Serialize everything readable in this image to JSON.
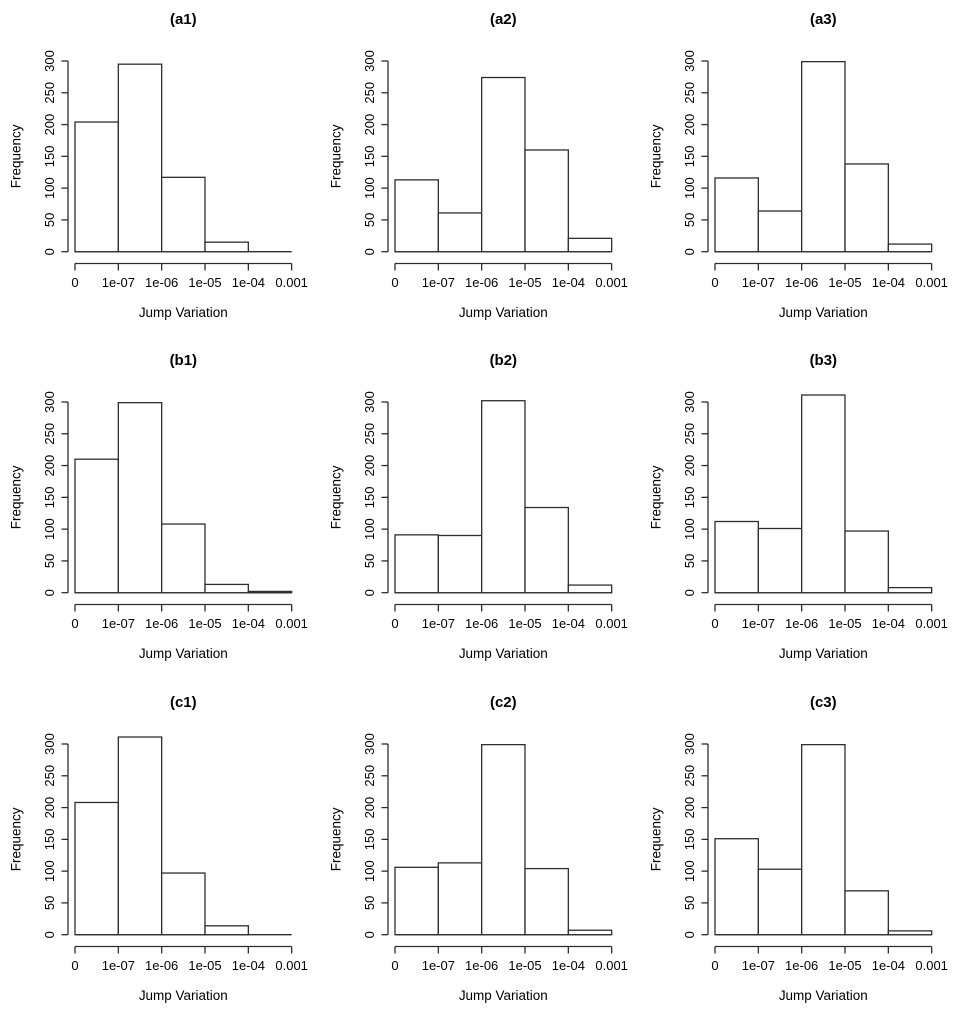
{
  "figure": {
    "grid": "3x3",
    "background": "#ffffff",
    "line_color": "#2e2e2e",
    "bar_fill": "#ffffff",
    "text_color": "#000000"
  },
  "chart_data": [
    {
      "type": "bar",
      "title": "(a1)",
      "xlabel": "Jump Variation",
      "ylabel": "Frequency",
      "x_tick_labels": [
        "0",
        "1e-07",
        "1e-06",
        "1e-05",
        "1e-04",
        "0.001"
      ],
      "y_ticks": [
        0,
        50,
        100,
        150,
        200,
        250,
        300
      ],
      "ylim": [
        0,
        300
      ],
      "grid_lines": false,
      "values": [
        204,
        295,
        117,
        15,
        0
      ]
    },
    {
      "type": "bar",
      "title": "(a2)",
      "xlabel": "Jump Variation",
      "ylabel": "Frequency",
      "x_tick_labels": [
        "0",
        "1e-07",
        "1e-06",
        "1e-05",
        "1e-04",
        "0.001"
      ],
      "y_ticks": [
        0,
        50,
        100,
        150,
        200,
        250,
        300
      ],
      "ylim": [
        0,
        300
      ],
      "grid_lines": false,
      "values": [
        113,
        61,
        274,
        160,
        21
      ]
    },
    {
      "type": "bar",
      "title": "(a3)",
      "xlabel": "Jump Variation",
      "ylabel": "Frequency",
      "x_tick_labels": [
        "0",
        "1e-07",
        "1e-06",
        "1e-05",
        "1e-04",
        "0.001"
      ],
      "y_ticks": [
        0,
        50,
        100,
        150,
        200,
        250,
        300
      ],
      "ylim": [
        0,
        300
      ],
      "grid_lines": false,
      "values": [
        116,
        64,
        299,
        138,
        12
      ]
    },
    {
      "type": "bar",
      "title": "(b1)",
      "xlabel": "Jump Variation",
      "ylabel": "Frequency",
      "x_tick_labels": [
        "0",
        "1e-07",
        "1e-06",
        "1e-05",
        "1e-04",
        "0.001"
      ],
      "y_ticks": [
        0,
        50,
        100,
        150,
        200,
        250,
        300
      ],
      "ylim": [
        0,
        300
      ],
      "grid_lines": false,
      "values": [
        210,
        299,
        108,
        13,
        2
      ]
    },
    {
      "type": "bar",
      "title": "(b2)",
      "xlabel": "Jump Variation",
      "ylabel": "Frequency",
      "x_tick_labels": [
        "0",
        "1e-07",
        "1e-06",
        "1e-05",
        "1e-04",
        "0.001"
      ],
      "y_ticks": [
        0,
        50,
        100,
        150,
        200,
        250,
        300
      ],
      "ylim": [
        0,
        300
      ],
      "grid_lines": false,
      "values": [
        91,
        90,
        302,
        134,
        12
      ]
    },
    {
      "type": "bar",
      "title": "(b3)",
      "xlabel": "Jump Variation",
      "ylabel": "Frequency",
      "x_tick_labels": [
        "0",
        "1e-07",
        "1e-06",
        "1e-05",
        "1e-04",
        "0.001"
      ],
      "y_ticks": [
        0,
        50,
        100,
        150,
        200,
        250,
        300
      ],
      "ylim": [
        0,
        300
      ],
      "grid_lines": false,
      "values": [
        112,
        101,
        311,
        97,
        8
      ]
    },
    {
      "type": "bar",
      "title": "(c1)",
      "xlabel": "Jump Variation",
      "ylabel": "Frequency",
      "x_tick_labels": [
        "0",
        "1e-07",
        "1e-06",
        "1e-05",
        "1e-04",
        "0.001"
      ],
      "y_ticks": [
        0,
        50,
        100,
        150,
        200,
        250,
        300
      ],
      "ylim": [
        0,
        300
      ],
      "grid_lines": false,
      "values": [
        208,
        311,
        97,
        14,
        0
      ]
    },
    {
      "type": "bar",
      "title": "(c2)",
      "xlabel": "Jump Variation",
      "ylabel": "Frequency",
      "x_tick_labels": [
        "0",
        "1e-07",
        "1e-06",
        "1e-05",
        "1e-04",
        "0.001"
      ],
      "y_ticks": [
        0,
        50,
        100,
        150,
        200,
        250,
        300
      ],
      "ylim": [
        0,
        300
      ],
      "grid_lines": false,
      "values": [
        106,
        113,
        299,
        104,
        7
      ]
    },
    {
      "type": "bar",
      "title": "(c3)",
      "xlabel": "Jump Variation",
      "ylabel": "Frequency",
      "x_tick_labels": [
        "0",
        "1e-07",
        "1e-06",
        "1e-05",
        "1e-04",
        "0.001"
      ],
      "y_ticks": [
        0,
        50,
        100,
        150,
        200,
        250,
        300
      ],
      "ylim": [
        0,
        300
      ],
      "grid_lines": false,
      "values": [
        151,
        103,
        299,
        69,
        6
      ]
    }
  ]
}
